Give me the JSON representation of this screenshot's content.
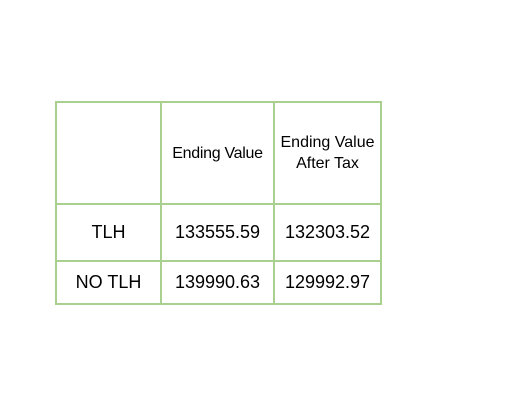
{
  "table": {
    "headers": [
      "",
      "Ending Value",
      "Ending Value After Tax"
    ],
    "rows": [
      {
        "label": "TLH",
        "ending_value": "133555.59",
        "ending_value_after_tax": "132303.52"
      },
      {
        "label": "NO TLH",
        "ending_value": "139990.63",
        "ending_value_after_tax": "129992.97"
      }
    ],
    "border_color": "#a9d08e"
  }
}
